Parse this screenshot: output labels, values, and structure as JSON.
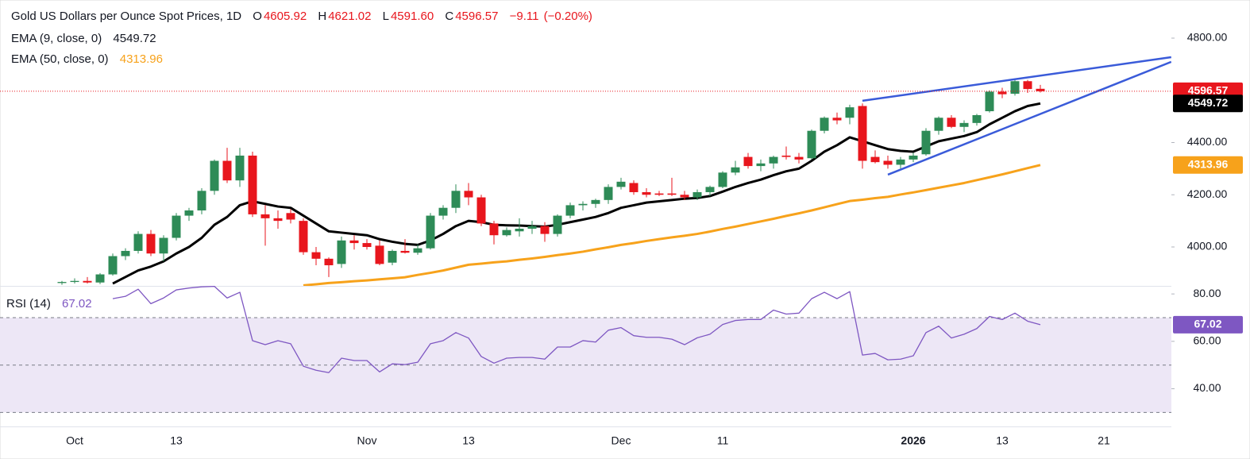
{
  "chart_data": [
    {
      "type": "candlestick",
      "title": "Gold US Dollars per Ounce Spot Prices, 1D",
      "ohlc_labels": [
        "O",
        "H",
        "L",
        "C"
      ],
      "ohlc_value_labels": [
        "4605.92",
        "4621.02",
        "4591.60",
        "4596.57"
      ],
      "change": {
        "value": -9.11,
        "label": "−9.11"
      },
      "change_pct": "(−0.20%)",
      "categories": [
        null,
        "Oct",
        null,
        null,
        null,
        null,
        null,
        null,
        null,
        "13",
        null,
        null,
        null,
        null,
        null,
        null,
        null,
        null,
        null,
        null,
        null,
        null,
        null,
        null,
        "Nov",
        null,
        null,
        null,
        null,
        null,
        null,
        null,
        "13",
        null,
        null,
        null,
        null,
        null,
        null,
        null,
        null,
        null,
        null,
        null,
        "Dec",
        null,
        null,
        null,
        null,
        null,
        null,
        null,
        "11",
        null,
        null,
        null,
        null,
        null,
        null,
        null,
        null,
        null,
        null,
        null,
        null,
        null,
        null,
        "2026",
        null,
        null,
        null,
        null,
        null,
        null,
        "13",
        null,
        null,
        null,
        null,
        null,
        null,
        null,
        "21",
        null,
        null,
        null,
        null,
        null
      ],
      "open": [
        3862,
        3866,
        3870,
        3864,
        3895,
        3965,
        3985,
        4050,
        3975,
        4035,
        4120,
        4140,
        4215,
        4330,
        4255,
        4350,
        4125,
        4110,
        4130,
        4100,
        3980,
        3955,
        3935,
        4025,
        4015,
        4005,
        3940,
        3985,
        3978,
        3995,
        4120,
        4150,
        4215,
        4190,
        4090,
        4045,
        4060,
        4070,
        4080,
        4050,
        4120,
        4160,
        4165,
        4180,
        4230,
        4245,
        4210,
        4205,
        4205,
        4200,
        4190,
        4210,
        4230,
        4285,
        4345,
        4310,
        4320,
        4350,
        4345,
        4340,
        4445,
        4495,
        4495,
        4540,
        4345,
        4330,
        4315,
        4335,
        4355,
        4445,
        4495,
        4460,
        4475,
        4520,
        4595,
        4587,
        4635,
        4605.92,
        null,
        null,
        null,
        null,
        null,
        null,
        null,
        null,
        null,
        null
      ],
      "high": [
        3870,
        3880,
        3885,
        3900,
        3975,
        3995,
        4060,
        4065,
        4045,
        4130,
        4150,
        4225,
        4335,
        4380,
        4380,
        4365,
        4160,
        4140,
        4145,
        4110,
        4000,
        3960,
        4040,
        4045,
        4030,
        4025,
        3990,
        4030,
        4010,
        4130,
        4160,
        4240,
        4245,
        4200,
        4100,
        4075,
        4110,
        4100,
        4095,
        4125,
        4170,
        4175,
        4185,
        4240,
        4265,
        4255,
        4225,
        4215,
        4265,
        4215,
        4220,
        4235,
        4290,
        4330,
        4360,
        4335,
        4350,
        4385,
        4360,
        4450,
        4500,
        4515,
        4545,
        4550,
        4370,
        4350,
        4345,
        4360,
        4455,
        4500,
        4505,
        4485,
        4510,
        4600,
        4610,
        4640,
        4640,
        4621.02,
        null,
        null,
        null,
        null,
        null,
        null,
        null,
        null,
        null,
        null
      ],
      "low": [
        3855,
        3860,
        3860,
        3858,
        3890,
        3950,
        3975,
        3965,
        3945,
        4025,
        4100,
        4125,
        4200,
        4245,
        4230,
        4115,
        4005,
        4070,
        4090,
        3970,
        3930,
        3885,
        3920,
        3990,
        3990,
        3930,
        3930,
        3975,
        3970,
        3990,
        4105,
        4130,
        4160,
        4080,
        4010,
        4040,
        4040,
        4050,
        4020,
        4040,
        4110,
        4140,
        4150,
        4165,
        4220,
        4200,
        4190,
        4195,
        4195,
        4180,
        4180,
        4195,
        4225,
        4275,
        4300,
        4290,
        4300,
        4335,
        4320,
        4335,
        4435,
        4470,
        4470,
        4300,
        4320,
        4300,
        4300,
        4325,
        4350,
        4430,
        4455,
        4440,
        4465,
        4515,
        4570,
        4580,
        4590,
        4591.6,
        null,
        null,
        null,
        null,
        null,
        null,
        null,
        null,
        null,
        null
      ],
      "close": [
        3866,
        3870,
        3864,
        3895,
        3965,
        3985,
        4050,
        3975,
        4035,
        4120,
        4140,
        4215,
        4330,
        4255,
        4350,
        4125,
        4110,
        4100,
        4105,
        3980,
        3955,
        3930,
        4025,
        4015,
        4000,
        3935,
        3985,
        3978,
        3995,
        4120,
        4150,
        4215,
        4190,
        4090,
        4045,
        4065,
        4070,
        4080,
        4050,
        4120,
        4160,
        4165,
        4180,
        4230,
        4250,
        4210,
        4200,
        4200,
        4200,
        4190,
        4210,
        4230,
        4285,
        4305,
        4310,
        4320,
        4345,
        4345,
        4335,
        4445,
        4495,
        4485,
        4535,
        4330,
        4325,
        4315,
        4335,
        4350,
        4445,
        4495,
        4460,
        4475,
        4505,
        4595,
        4585,
        4635,
        4605,
        4596.57,
        null,
        null,
        null,
        null,
        null,
        null,
        null,
        null,
        null,
        null
      ],
      "up_color": "#2e8b57",
      "down_color": "#e8161d",
      "series": [
        {
          "name": "EMA (9, close, 0)",
          "color": "#000000",
          "values": [
            null,
            null,
            null,
            null,
            3860,
            3885,
            3910,
            3925,
            3945,
            3975,
            4000,
            4035,
            4085,
            4115,
            4160,
            4175,
            4165,
            4155,
            4150,
            4120,
            4090,
            4060,
            4055,
            4050,
            4045,
            4030,
            4020,
            4012,
            4008,
            4025,
            4050,
            4080,
            4100,
            4095,
            4085,
            4083,
            4082,
            4080,
            4078,
            4085,
            4095,
            4105,
            4115,
            4130,
            4150,
            4160,
            4170,
            4175,
            4180,
            4185,
            4188,
            4195,
            4212,
            4230,
            4245,
            4258,
            4275,
            4290,
            4300,
            4330,
            4365,
            4390,
            4420,
            4405,
            4390,
            4375,
            4368,
            4365,
            4385,
            4405,
            4415,
            4425,
            4440,
            4470,
            4495,
            4520,
            4540,
            4549.72,
            null,
            null,
            null,
            null,
            null,
            null,
            null,
            null,
            null,
            null
          ]
        },
        {
          "name": "EMA (50, close, 0)",
          "color": "#f7a21b",
          "values": [
            null,
            null,
            null,
            null,
            null,
            null,
            null,
            null,
            null,
            null,
            null,
            null,
            null,
            null,
            null,
            null,
            null,
            null,
            null,
            3853,
            3857,
            3862,
            3865,
            3869,
            3872,
            3876,
            3880,
            3884,
            3893,
            3901,
            3910,
            3921,
            3932,
            3936,
            3941,
            3945,
            3951,
            3956,
            3962,
            3969,
            3975,
            3982,
            3991,
            3999,
            4008,
            4015,
            4023,
            4030,
            4037,
            4043,
            4050,
            4059,
            4069,
            4078,
            4088,
            4098,
            4108,
            4119,
            4129,
            4140,
            4152,
            4164,
            4176,
            4181,
            4187,
            4192,
            4201,
            4209,
            4218,
            4227,
            4236,
            4245,
            4256,
            4267,
            4278,
            4290,
            4302,
            4313.96,
            null,
            null,
            null,
            null,
            null,
            null,
            null,
            null,
            null,
            null
          ]
        }
      ],
      "ylim": [
        3851,
        4946
      ],
      "yticks": [
        {
          "value": 4000,
          "label": "4000.00"
        },
        {
          "value": 4200,
          "label": "4200.00"
        },
        {
          "value": 4400,
          "label": "4400.00"
        },
        {
          "value": 4800,
          "label": "4800.00"
        }
      ],
      "grid": false,
      "trendlines": [
        {
          "color": "#3a5bd9",
          "x": [
            63,
            87.3
          ],
          "y": [
            4560,
            4727
          ]
        },
        {
          "color": "#3a5bd9",
          "x": [
            65,
            87.3
          ],
          "y": [
            4277,
            4709
          ]
        }
      ],
      "last_price_line": true
    },
    {
      "type": "line",
      "series": [
        {
          "name": "RSI (14)",
          "color": "#7e57c2",
          "values": [
            null,
            null,
            null,
            null,
            78,
            79,
            82,
            75.9,
            78.3,
            81.7,
            82.5,
            83,
            83.2,
            78.3,
            80.7,
            60.3,
            58.6,
            60.3,
            59,
            49.5,
            47.8,
            46.8,
            52.9,
            51.9,
            51.9,
            47.1,
            50.5,
            50.2,
            51.2,
            59,
            60.3,
            63.7,
            61.4,
            53.6,
            50.8,
            52.9,
            53.2,
            53.2,
            52.5,
            57.6,
            57.6,
            60.3,
            59.7,
            64.7,
            65.8,
            62.4,
            61.7,
            61.7,
            60.9,
            58.6,
            61.5,
            63,
            67.1,
            68.8,
            69.2,
            69.2,
            73.2,
            71.5,
            71.9,
            78,
            80.7,
            78,
            81,
            54.2,
            54.9,
            52.2,
            52.5,
            53.9,
            63.7,
            66.4,
            61.4,
            63,
            65.4,
            70.5,
            69.2,
            71.9,
            68.5,
            67.02,
            null,
            null,
            null,
            null,
            null,
            null,
            null,
            null,
            null,
            null
          ]
        }
      ],
      "ylim": [
        24.1,
        83.4
      ],
      "yticks": [
        {
          "value": 40,
          "label": "40.00"
        },
        {
          "value": 60,
          "label": "60.00"
        },
        {
          "value": 80,
          "label": "80.00"
        }
      ],
      "levels": [
        30,
        50,
        70
      ],
      "band": [
        30,
        70
      ],
      "band_color": "#ede7f6"
    }
  ]
}
